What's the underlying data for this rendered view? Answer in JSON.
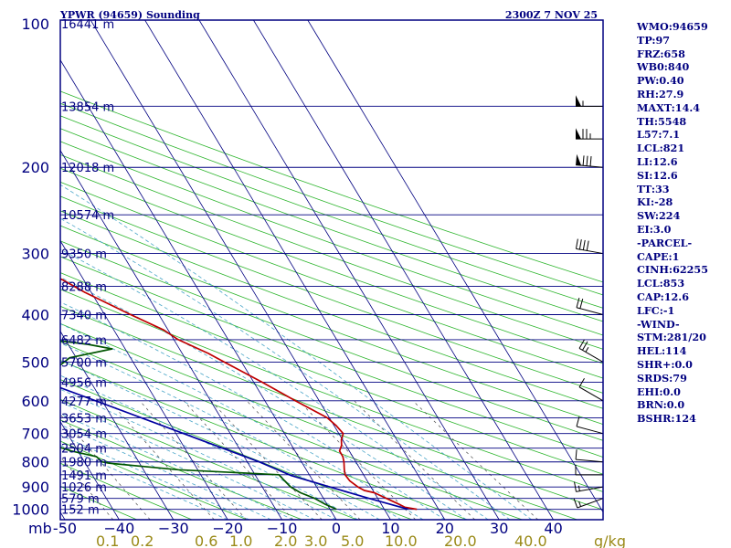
{
  "chart_data": {
    "type": "line",
    "title": "YPWR (94659) Sounding",
    "valid_time": "2300Z  7 NOV 25",
    "pressure_unit": "mb",
    "pressure_levels": [
      100,
      200,
      300,
      400,
      500,
      600,
      700,
      800,
      900,
      1000
    ],
    "height_labels": [
      {
        "p": 100,
        "label": "16441 m"
      },
      {
        "p": 150,
        "label": "13854 m"
      },
      {
        "p": 200,
        "label": "12018 m"
      },
      {
        "p": 250,
        "label": "10574 m"
      },
      {
        "p": 300,
        "label": "9350 m"
      },
      {
        "p": 350,
        "label": "8288 m"
      },
      {
        "p": 400,
        "label": "7340 m"
      },
      {
        "p": 450,
        "label": "6482 m"
      },
      {
        "p": 500,
        "label": "5700 m"
      },
      {
        "p": 550,
        "label": "4956 m"
      },
      {
        "p": 600,
        "label": "4277 m"
      },
      {
        "p": 650,
        "label": "3653 m"
      },
      {
        "p": 700,
        "label": "3054 m"
      },
      {
        "p": 750,
        "label": "2504 m"
      },
      {
        "p": 800,
        "label": "1980 m"
      },
      {
        "p": 850,
        "label": "1491 m"
      },
      {
        "p": 900,
        "label": "1026 m"
      },
      {
        "p": 950,
        "label": "579 m"
      },
      {
        "p": 1000,
        "label": "152 m"
      }
    ],
    "x_ticks": [
      -50,
      -40,
      -30,
      -20,
      -10,
      0,
      10,
      20,
      30,
      40
    ],
    "x_tick_labels": [
      "-50",
      "−40",
      "−30",
      "−20",
      "−10",
      "0",
      "10",
      "20",
      "30",
      "40"
    ],
    "x_range": [
      -50,
      48
    ],
    "mixing_ratio_labels": [
      "0.1",
      "0.2",
      "0.6",
      "1.0",
      "2.0",
      "3.0",
      "5.0",
      "10.0",
      "20.0",
      "40.0",
      "g/kg"
    ],
    "colors": {
      "frame": "#000080",
      "isobar": "#000080",
      "isotherm": "#000080",
      "dry_adiabat": "#2db52d",
      "moist_adiabat": "#4aa6c8",
      "mixing_ratio": "#4a4a4a",
      "temperature": "#c00000",
      "dewpoint": "#005500",
      "parcel": "#0000a0",
      "wind_barb": "#000000"
    },
    "series": [
      {
        "name": "temperature",
        "points": [
          [
            1000,
            16
          ],
          [
            990,
            14
          ],
          [
            975,
            13.2
          ],
          [
            950,
            11.6
          ],
          [
            925,
            10
          ],
          [
            915,
            8.4
          ],
          [
            900,
            7.6
          ],
          [
            875,
            6.8
          ],
          [
            850,
            6.6
          ],
          [
            830,
            7
          ],
          [
            800,
            7.8
          ],
          [
            780,
            8.2
          ],
          [
            760,
            8.2
          ],
          [
            740,
            9.2
          ],
          [
            720,
            9.8
          ],
          [
            700,
            10.8
          ],
          [
            675,
            10.4
          ],
          [
            650,
            9.6
          ],
          [
            600,
            5.6
          ],
          [
            550,
            1.6
          ],
          [
            500,
            -3.2
          ],
          [
            480,
            -5.2
          ],
          [
            450,
            -9.2
          ],
          [
            430,
            -10.8
          ],
          [
            400,
            -15.2
          ],
          [
            360,
            -21.2
          ],
          [
            340,
            -23.8
          ],
          [
            320,
            -27.8
          ],
          [
            300,
            -33.2
          ],
          [
            295,
            -35.4
          ],
          [
            290,
            -35
          ],
          [
            250,
            -38.8
          ],
          [
            200,
            -46.8
          ],
          [
            150,
            -52.8
          ],
          [
            100,
            -61.2
          ]
        ]
      },
      {
        "name": "dewpoint",
        "points": [
          [
            1000,
            1.2
          ],
          [
            975,
            -0.4
          ],
          [
            950,
            -1.6
          ],
          [
            925,
            -3.6
          ],
          [
            900,
            -4.8
          ],
          [
            875,
            -5.2
          ],
          [
            850,
            -5.6
          ],
          [
            830,
            -23.6
          ],
          [
            805,
            -35.6
          ],
          [
            800,
            -36.8
          ],
          [
            780,
            -37.2
          ],
          [
            760,
            -41.2
          ],
          [
            730,
            -45.2
          ],
          [
            700,
            -55.2
          ],
          [
            680,
            -54.2
          ],
          [
            650,
            -52
          ],
          [
            600,
            -45.6
          ],
          [
            560,
            -38.4
          ],
          [
            520,
            -35.6
          ],
          [
            490,
            -31.2
          ],
          [
            470,
            -22.4
          ],
          [
            460,
            -26.4
          ],
          [
            450,
            -32.8
          ],
          [
            430,
            -35.2
          ],
          [
            415,
            -34.8
          ],
          [
            400,
            -39.2
          ],
          [
            380,
            -41.2
          ],
          [
            360,
            -40.8
          ],
          [
            350,
            -37.2
          ],
          [
            330,
            -41.2
          ],
          [
            310,
            -46.8
          ],
          [
            300,
            -51.2
          ],
          [
            299,
            -71.2
          ],
          [
            250,
            -73.2
          ],
          [
            230,
            -74.8
          ],
          [
            200,
            -78.8
          ],
          [
            150,
            -86.8
          ],
          [
            100,
            -98
          ]
        ]
      },
      {
        "name": "parcel",
        "points": [
          [
            1000,
            14.4
          ],
          [
            950,
            8.4
          ],
          [
            900,
            2.4
          ],
          [
            853,
            -3.4
          ],
          [
            800,
            -7.8
          ],
          [
            700,
            -18.6
          ],
          [
            600,
            -31.2
          ],
          [
            500,
            -46.2
          ],
          [
            400,
            -64.6
          ],
          [
            300,
            -88.8
          ],
          [
            250,
            -104.4
          ],
          [
            200,
            -123.4
          ],
          [
            150,
            -149.6
          ],
          [
            120,
            -170
          ]
        ]
      }
    ],
    "wind_barbs": [
      {
        "p": 950,
        "dir": 250,
        "kt": 15
      },
      {
        "p": 900,
        "dir": 260,
        "kt": 15
      },
      {
        "p": 850,
        "dir": 270,
        "kt": 10
      },
      {
        "p": 800,
        "dir": 275,
        "kt": 10
      },
      {
        "p": 700,
        "dir": 285,
        "kt": 10
      },
      {
        "p": 600,
        "dir": 300,
        "kt": 10
      },
      {
        "p": 500,
        "dir": 300,
        "kt": 25
      },
      {
        "p": 400,
        "dir": 285,
        "kt": 20
      },
      {
        "p": 300,
        "dir": 280,
        "kt": 40
      },
      {
        "p": 200,
        "dir": 275,
        "kt": 80
      },
      {
        "p": 175,
        "dir": 270,
        "kt": 75
      },
      {
        "p": 150,
        "dir": 270,
        "kt": 55
      }
    ],
    "grid": true
  },
  "indices": [
    "WMO:94659",
    "TP:97",
    "FRZ:658",
    "WB0:840",
    "PW:0.40",
    "RH:27.9",
    "MAXT:14.4",
    "TH:5548",
    "L57:7.1",
    "LCL:821",
    "LI:12.6",
    "SI:12.6",
    "TT:33",
    "KI:-28",
    "SW:224",
    "EI:3.0",
    "-PARCEL-",
    "CAPE:1",
    "CINH:62255",
    "LCL:853",
    "CAP:12.6",
    "LFC:-1",
    "-WIND-",
    "STM:281/20",
    "HEL:114",
    "SHR+:0.0",
    "SRDS:79",
    "EHI:0.0",
    "BRN:0.0",
    "BSHR:124"
  ]
}
